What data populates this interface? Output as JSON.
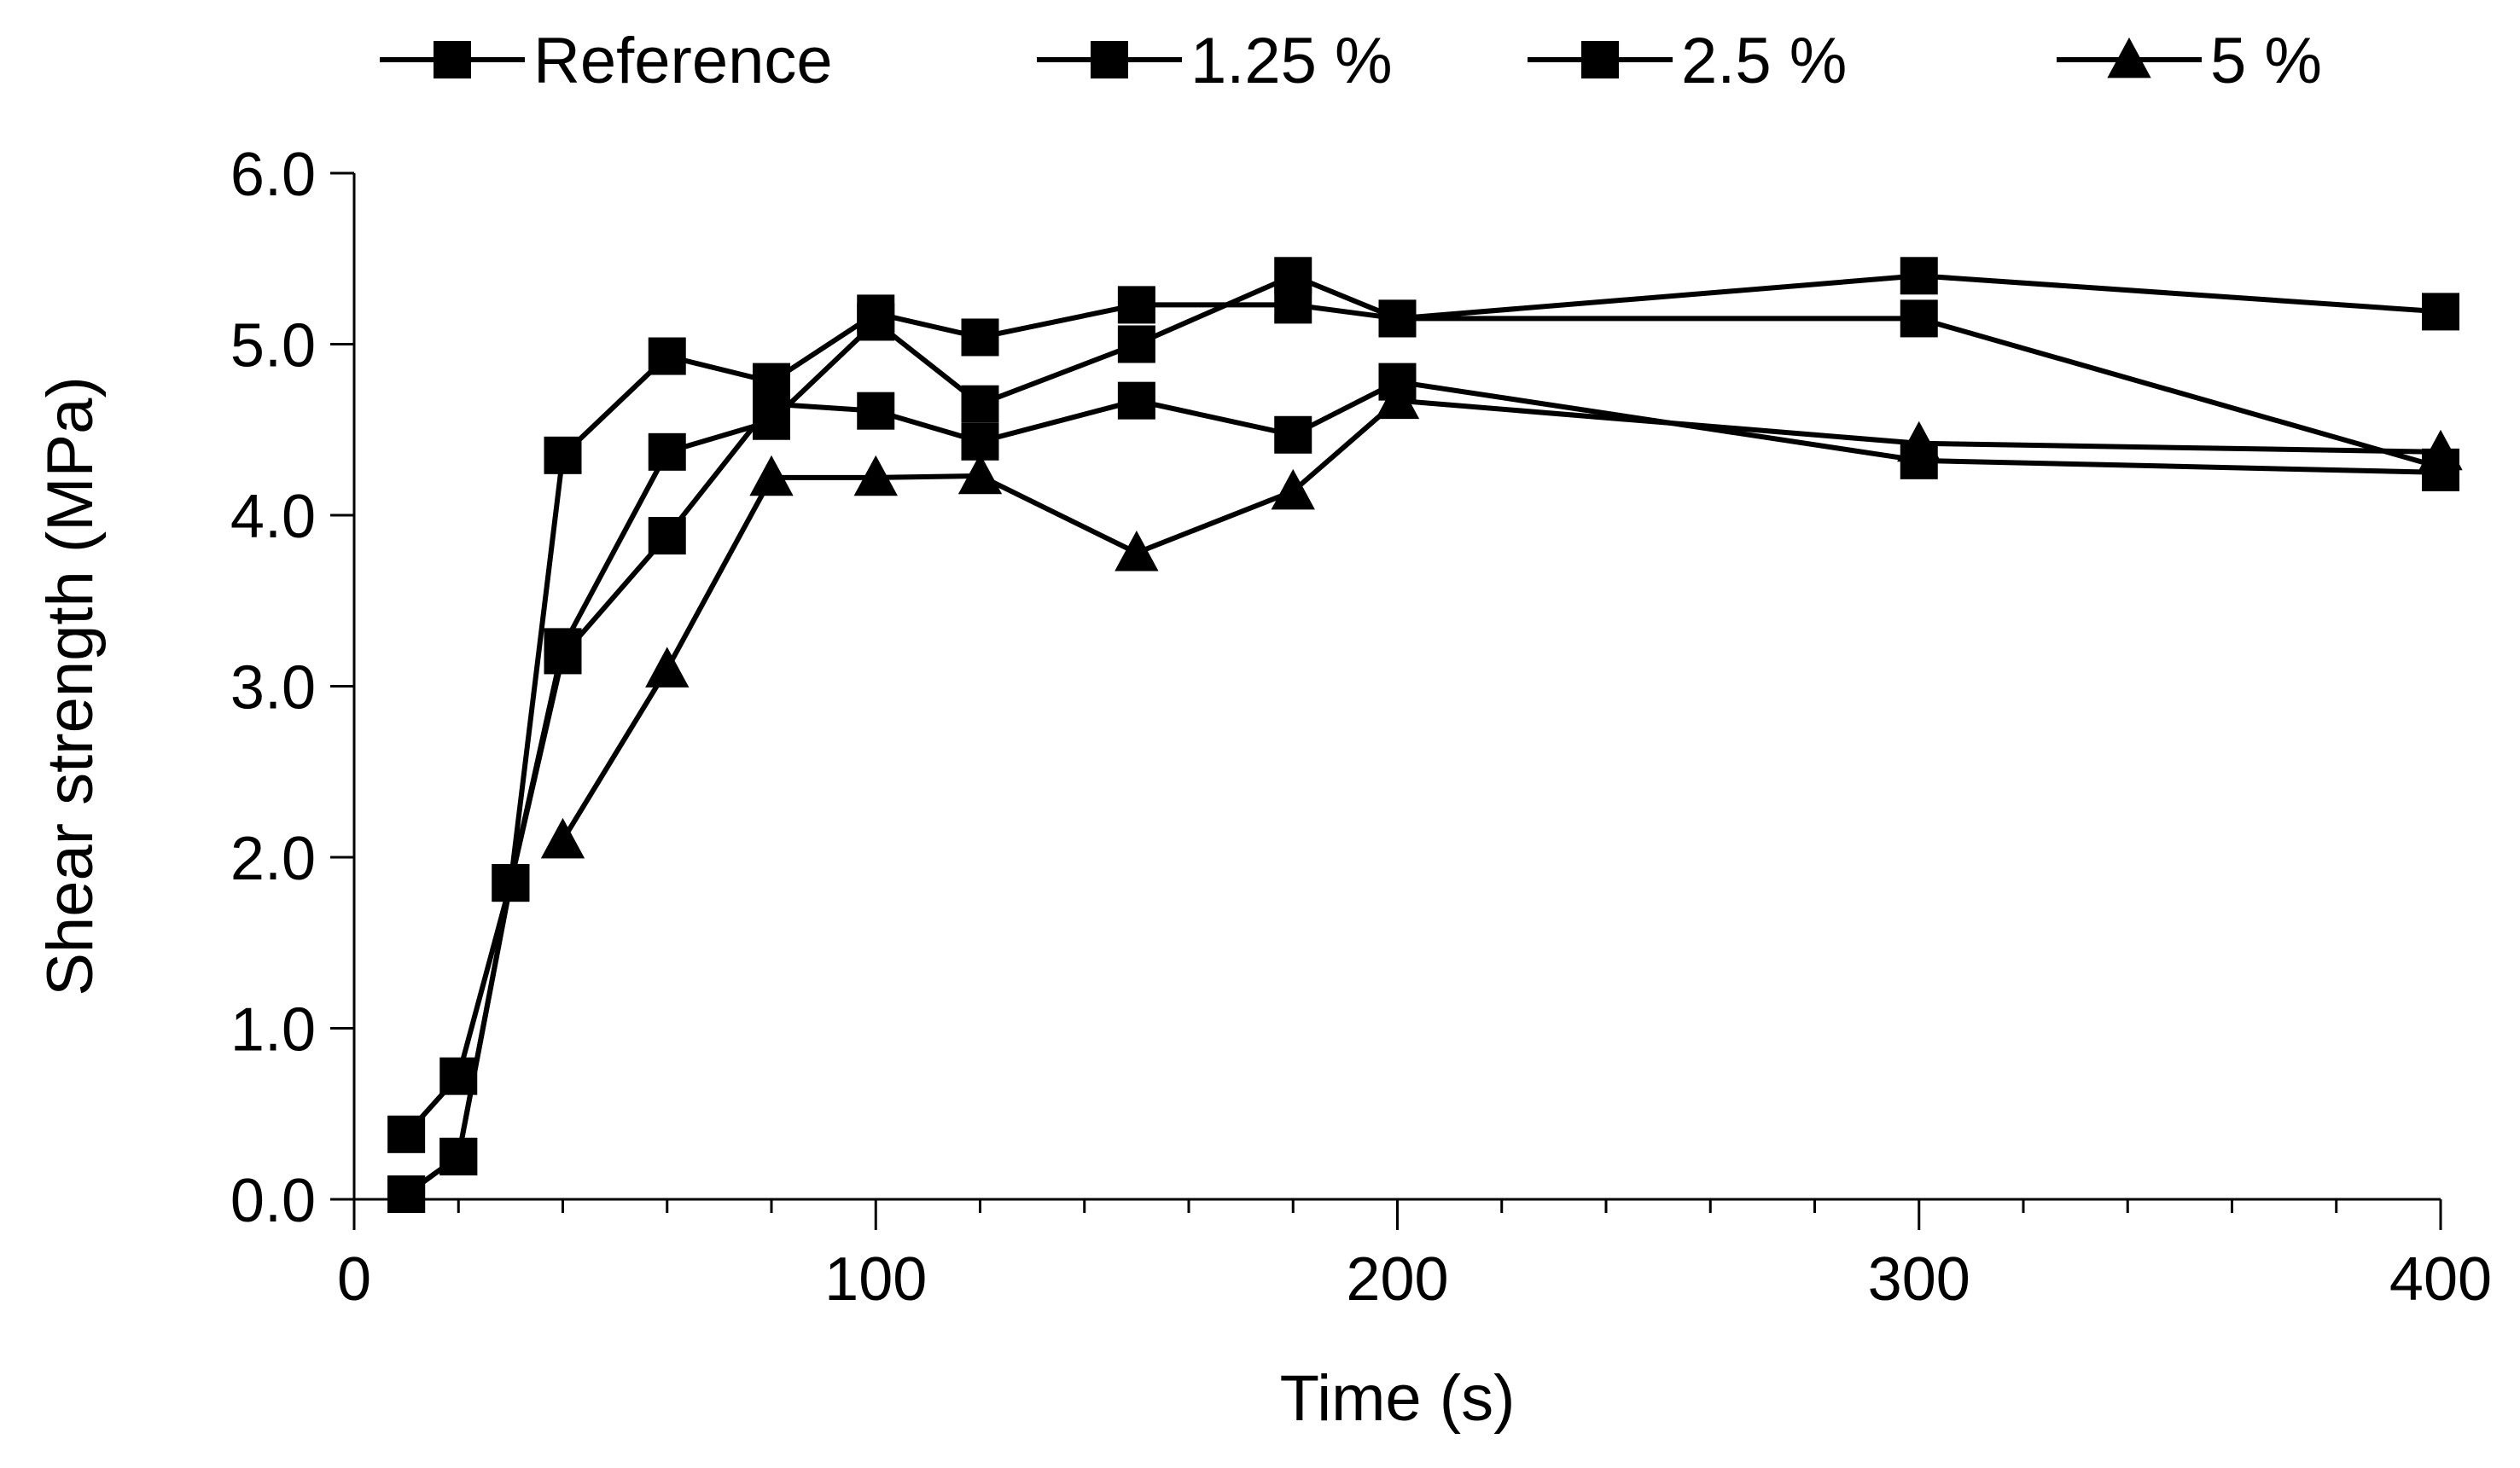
{
  "chart_data": {
    "type": "line",
    "title": "",
    "xlabel": "Time (s)",
    "ylabel": "Shear strength (MPa)",
    "xlim": [
      0,
      400
    ],
    "ylim": [
      0,
      6
    ],
    "x_ticks": [
      0,
      100,
      200,
      300,
      400
    ],
    "x_tick_labels": [
      "0",
      "100",
      "200",
      "300",
      "400"
    ],
    "y_ticks": [
      0,
      1,
      2,
      3,
      4,
      5,
      6
    ],
    "y_tick_labels": [
      "0.0",
      "1.0",
      "2.0",
      "3.0",
      "4.0",
      "5.0",
      "6.0"
    ],
    "x_minor_step": 20,
    "grid": false,
    "legend_position": "top",
    "line_color": "#000000",
    "series": [
      {
        "name": "Reference",
        "marker": "square",
        "x": [
          10,
          20,
          30,
          40,
          60,
          80,
          100,
          120,
          150,
          180,
          200,
          300,
          400
        ],
        "values": [
          0.38,
          0.72,
          1.85,
          4.35,
          4.93,
          4.78,
          5.18,
          5.04,
          5.23,
          5.23,
          5.15,
          5.15,
          4.28
        ]
      },
      {
        "name": "1.25 %",
        "marker": "square",
        "x": [
          10,
          20,
          30,
          40,
          60,
          80,
          100,
          120,
          150,
          180,
          200,
          300,
          400
        ],
        "values": [
          0.03,
          0.25,
          1.85,
          3.23,
          4.37,
          4.55,
          5.13,
          4.65,
          5.0,
          5.4,
          5.15,
          5.4,
          5.19
        ]
      },
      {
        "name": "2.5 %",
        "marker": "square",
        "x": [
          10,
          20,
          30,
          40,
          60,
          80,
          100,
          120,
          150,
          180,
          200,
          300,
          400
        ],
        "values": [
          0.03,
          0.25,
          1.85,
          3.18,
          3.88,
          4.65,
          4.61,
          4.43,
          4.67,
          4.47,
          4.78,
          4.32,
          4.25
        ]
      },
      {
        "name": "5 %",
        "marker": "triangle",
        "x": [
          40,
          60,
          80,
          100,
          120,
          150,
          180,
          200,
          300,
          400
        ],
        "values": [
          2.1,
          3.1,
          4.22,
          4.22,
          4.23,
          3.78,
          4.14,
          4.67,
          4.42,
          4.37
        ]
      }
    ]
  }
}
